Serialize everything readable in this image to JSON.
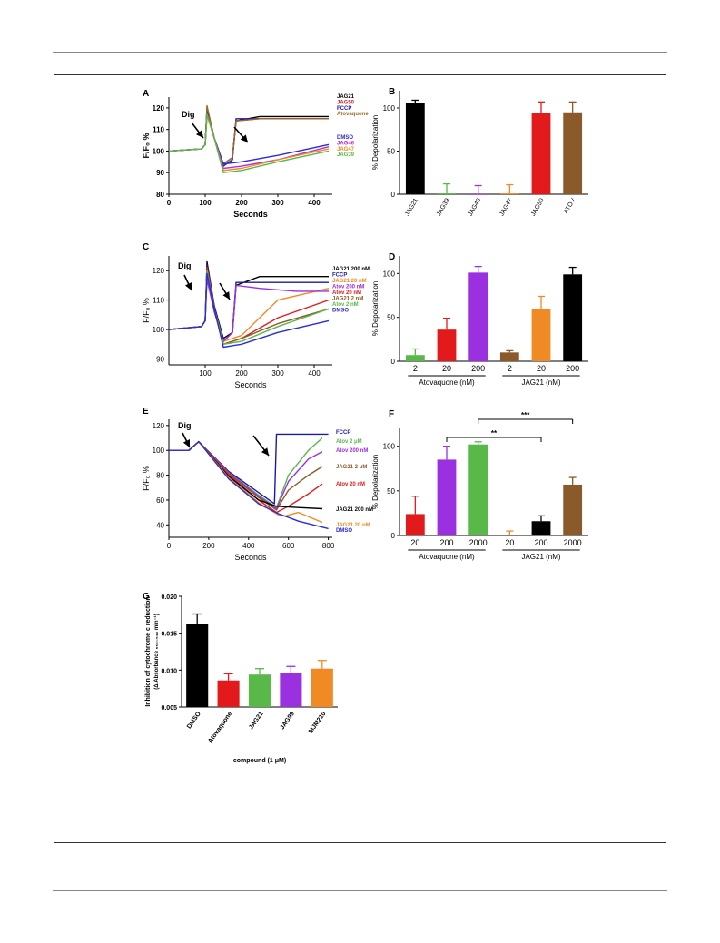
{
  "panels": {
    "A": {
      "letter": "A",
      "xlabel": "Seconds",
      "ylabel": "F/F₀ %",
      "xticks": [
        "0",
        "100",
        "200",
        "300",
        "400"
      ],
      "yticks": [
        "80",
        "90",
        "100",
        "110",
        "120"
      ],
      "marker": "Dig",
      "legend": [
        {
          "label": "JAG21",
          "color": "#000000"
        },
        {
          "label": "JAG50",
          "color": "#e31a1c"
        },
        {
          "label": "FCCP",
          "color": "#1a1aa6"
        },
        {
          "label": "Atovaquone",
          "color": "#9c6b30"
        },
        {
          "label": "DMSO",
          "color": "#2b2bd8"
        },
        {
          "label": "JAG46",
          "color": "#b42fd6"
        },
        {
          "label": "JAG47",
          "color": "#f08a24"
        },
        {
          "label": "JAG39",
          "color": "#58b848"
        }
      ]
    },
    "B": {
      "letter": "B",
      "ylabel": "% Depolarization",
      "yticks": [
        "0",
        "50",
        "100"
      ],
      "bars": [
        {
          "label": "JAG21",
          "value": 106,
          "err": 3,
          "color": "#000000"
        },
        {
          "label": "JAG39",
          "value": 1,
          "err": 11,
          "color": "#58b848"
        },
        {
          "label": "JAG46",
          "value": 0,
          "err": 10,
          "color": "#9b30e0"
        },
        {
          "label": "JAG47",
          "value": 1,
          "err": 10,
          "color": "#f08a24"
        },
        {
          "label": "JAG50",
          "value": 94,
          "err": 13,
          "color": "#e31a1c"
        },
        {
          "label": "ATOV",
          "value": 95,
          "err": 12,
          "color": "#8b5a2b"
        }
      ]
    },
    "C": {
      "letter": "C",
      "xlabel": "Seconds",
      "ylabel": "F/F₀ %",
      "xticks": [
        "100",
        "200",
        "300",
        "400"
      ],
      "yticks": [
        "90",
        "100",
        "110",
        "120"
      ],
      "marker": "Dig",
      "legend": [
        {
          "label": "JAG21 200 nM",
          "color": "#000000"
        },
        {
          "label": "FCCP",
          "color": "#1a1aa6"
        },
        {
          "label": "JAG21 20 nM",
          "color": "#f08a24"
        },
        {
          "label": "Atov 200 nM",
          "color": "#9b30e0"
        },
        {
          "label": "Atov 20 nM",
          "color": "#e31a1c"
        },
        {
          "label": "JAG21 2 nM",
          "color": "#8b5a2b"
        },
        {
          "label": "Atov 2 nM",
          "color": "#58b848"
        },
        {
          "label": "DMSO",
          "color": "#2b2bd8"
        }
      ]
    },
    "D": {
      "letter": "D",
      "ylabel": "% Depolarization",
      "yticks": [
        "0",
        "50",
        "100"
      ],
      "bars": [
        {
          "label": "2",
          "value": 7,
          "err": 7,
          "color": "#58b848"
        },
        {
          "label": "20",
          "value": 36,
          "err": 13,
          "color": "#e31a1c"
        },
        {
          "label": "200",
          "value": 101,
          "err": 7,
          "color": "#9b30e0"
        },
        {
          "label": "2",
          "value": 10,
          "err": 2,
          "color": "#8b5a2b"
        },
        {
          "label": "20",
          "value": 59,
          "err": 15,
          "color": "#f08a24"
        },
        {
          "label": "200",
          "value": 99,
          "err": 8,
          "color": "#000000"
        }
      ],
      "groups": [
        "Atovaquone (nM)",
        "JAG21 (nM)"
      ]
    },
    "E": {
      "letter": "E",
      "xlabel": "Seconds",
      "ylabel": "F/F₀ %",
      "xticks": [
        "0",
        "200",
        "400",
        "600",
        "800"
      ],
      "yticks": [
        "40",
        "60",
        "80",
        "100",
        "120"
      ],
      "marker": "Dig",
      "legend": [
        {
          "label": "FCCP",
          "color": "#1a1aa6"
        },
        {
          "label": "Atov 2 μM",
          "color": "#58b848"
        },
        {
          "label": "Atov 200 nM",
          "color": "#9b30e0"
        },
        {
          "label": "JAG21 2 μM",
          "color": "#8b5a2b"
        },
        {
          "label": "Atov 20 nM",
          "color": "#e31a1c"
        },
        {
          "label": "JAG21 200 nM",
          "color": "#000000"
        },
        {
          "label": "JAG21 20 nM",
          "color": "#f08a24"
        },
        {
          "label": "DMSO",
          "color": "#2b2bd8"
        }
      ]
    },
    "F": {
      "letter": "F",
      "ylabel": "% Depolarization",
      "yticks": [
        "0",
        "50",
        "100"
      ],
      "bars": [
        {
          "label": "20",
          "value": 24,
          "err": 20,
          "color": "#e31a1c"
        },
        {
          "label": "200",
          "value": 85,
          "err": 15,
          "color": "#9b30e0"
        },
        {
          "label": "2000",
          "value": 102,
          "err": 3,
          "color": "#58b848"
        },
        {
          "label": "20",
          "value": 1,
          "err": 4,
          "color": "#f08a24"
        },
        {
          "label": "200",
          "value": 16,
          "err": 6,
          "color": "#000000"
        },
        {
          "label": "2000",
          "value": 57,
          "err": 8,
          "color": "#8b5a2b"
        }
      ],
      "groups": [
        "Atovaquone (nM)",
        "JAG21 (nM)"
      ],
      "sig1": "**",
      "sig2": "***"
    },
    "G": {
      "letter": "G",
      "ylabel1": "Inhibition of cytochrome c reduction",
      "ylabel2": "(Δ Absorbance ₅₅₀₋₅₄₂ min⁻¹)",
      "xlabel": "compound (1 μM)",
      "yticks": [
        "0.005",
        "0.010",
        "0.015",
        "0.020"
      ],
      "bars": [
        {
          "label": "DMSO",
          "value": 0.0163,
          "err": 0.0013,
          "color": "#000000"
        },
        {
          "label": "Atovaquone",
          "value": 0.0086,
          "err": 0.0009,
          "color": "#e31a1c"
        },
        {
          "label": "JAG21",
          "value": 0.0094,
          "err": 0.0008,
          "color": "#58b848"
        },
        {
          "label": "JAG99",
          "value": 0.0096,
          "err": 0.0009,
          "color": "#9b30e0"
        },
        {
          "label": "MJM210",
          "value": 0.0102,
          "err": 0.0011,
          "color": "#f08a24"
        }
      ]
    }
  },
  "chart_data": [
    {
      "panel": "A",
      "type": "line",
      "xlabel": "Seconds",
      "ylabel": "F/F₀ %",
      "xlim": [
        0,
        450
      ],
      "ylim": [
        80,
        125
      ],
      "series": [
        {
          "name": "JAG21",
          "x": [
            0,
            90,
            100,
            105,
            125,
            150,
            175,
            185,
            250,
            350,
            440
          ],
          "y": [
            100,
            101,
            103,
            120,
            106,
            94,
            97,
            114,
            116,
            116,
            116
          ]
        },
        {
          "name": "JAG50",
          "x": [
            0,
            90,
            100,
            105,
            125,
            150,
            175,
            185,
            250,
            350,
            440
          ],
          "y": [
            100,
            101,
            103,
            120,
            106,
            94,
            97,
            114,
            115,
            115,
            115
          ]
        },
        {
          "name": "FCCP",
          "x": [
            0,
            90,
            100,
            105,
            125,
            150,
            175,
            185,
            250,
            350,
            440
          ],
          "y": [
            100,
            101,
            103,
            119,
            106,
            93,
            96,
            115,
            115,
            115,
            115
          ]
        },
        {
          "name": "Atovaquone",
          "x": [
            0,
            90,
            100,
            105,
            125,
            150,
            175,
            185,
            250,
            350,
            440
          ],
          "y": [
            100,
            101,
            103,
            121,
            106,
            94,
            97,
            114,
            115,
            115,
            115
          ]
        },
        {
          "name": "DMSO",
          "x": [
            0,
            90,
            100,
            105,
            125,
            150,
            200,
            300,
            440
          ],
          "y": [
            100,
            101,
            103,
            117,
            106,
            94,
            95,
            98,
            103
          ]
        },
        {
          "name": "JAG46",
          "x": [
            0,
            90,
            100,
            105,
            125,
            150,
            200,
            300,
            440
          ],
          "y": [
            100,
            101,
            103,
            117,
            106,
            92,
            93,
            96,
            102
          ]
        },
        {
          "name": "JAG47",
          "x": [
            0,
            90,
            100,
            105,
            125,
            150,
            200,
            300,
            440
          ],
          "y": [
            100,
            101,
            103,
            117,
            106,
            91,
            92,
            96,
            101
          ]
        },
        {
          "name": "JAG39",
          "x": [
            0,
            90,
            100,
            105,
            125,
            150,
            200,
            300,
            440
          ],
          "y": [
            100,
            101,
            103,
            117,
            106,
            90,
            91,
            95,
            100
          ]
        }
      ]
    },
    {
      "panel": "B",
      "type": "bar",
      "ylabel": "% Depolarization",
      "ylim": [
        0,
        120
      ],
      "categories": [
        "JAG21",
        "JAG39",
        "JAG46",
        "JAG47",
        "JAG50",
        "ATOV"
      ],
      "values": [
        106,
        1,
        0,
        1,
        94,
        95
      ],
      "errors": [
        3,
        11,
        10,
        10,
        13,
        12
      ]
    },
    {
      "panel": "C",
      "type": "line",
      "xlabel": "Seconds",
      "ylabel": "F/F₀ %",
      "xlim": [
        0,
        450
      ],
      "ylim": [
        88,
        125
      ],
      "series": [
        {
          "name": "JAG21 200 nM",
          "x": [
            0,
            90,
            100,
            105,
            125,
            150,
            175,
            185,
            250,
            350,
            440
          ],
          "y": [
            100,
            101,
            103,
            123,
            108,
            97,
            99,
            115,
            118,
            118,
            118
          ]
        },
        {
          "name": "FCCP",
          "x": [
            0,
            90,
            100,
            105,
            125,
            150,
            175,
            185,
            250,
            350,
            440
          ],
          "y": [
            100,
            101,
            103,
            122,
            108,
            96,
            99,
            116,
            116,
            116,
            116
          ]
        },
        {
          "name": "JAG21 20 nM",
          "x": [
            0,
            90,
            100,
            105,
            125,
            150,
            200,
            300,
            440
          ],
          "y": [
            100,
            101,
            103,
            121,
            107,
            96,
            98,
            110,
            114
          ]
        },
        {
          "name": "Atov 200 nM",
          "x": [
            0,
            90,
            100,
            105,
            125,
            150,
            175,
            185,
            250,
            350,
            440
          ],
          "y": [
            100,
            101,
            103,
            117,
            106,
            96,
            99,
            115,
            114,
            113,
            113
          ]
        },
        {
          "name": "Atov 20 nM",
          "x": [
            0,
            90,
            100,
            105,
            125,
            150,
            200,
            300,
            440
          ],
          "y": [
            100,
            101,
            103,
            121,
            107,
            95,
            97,
            104,
            110
          ]
        },
        {
          "name": "JAG21 2 nM",
          "x": [
            0,
            90,
            100,
            105,
            125,
            150,
            200,
            300,
            440
          ],
          "y": [
            100,
            101,
            103,
            120,
            107,
            95,
            97,
            102,
            107
          ]
        },
        {
          "name": "Atov 2 nM",
          "x": [
            0,
            90,
            100,
            105,
            125,
            150,
            200,
            300,
            440
          ],
          "y": [
            100,
            101,
            103,
            120,
            107,
            95,
            96,
            101,
            107
          ]
        },
        {
          "name": "DMSO",
          "x": [
            0,
            90,
            100,
            105,
            125,
            150,
            200,
            300,
            440
          ],
          "y": [
            100,
            101,
            103,
            119,
            107,
            94,
            95,
            99,
            103
          ]
        }
      ]
    },
    {
      "panel": "D",
      "type": "bar",
      "ylabel": "% Depolarization",
      "ylim": [
        0,
        120
      ],
      "categories": [
        "2",
        "20",
        "200",
        "2",
        "20",
        "200"
      ],
      "groups": [
        "Atovaquone (nM)",
        "JAG21 (nM)"
      ],
      "values": [
        7,
        36,
        101,
        10,
        59,
        99
      ],
      "errors": [
        7,
        13,
        7,
        2,
        15,
        8
      ]
    },
    {
      "panel": "E",
      "type": "line",
      "xlabel": "Seconds",
      "ylabel": "F/F₀ %",
      "xlim": [
        0,
        820
      ],
      "ylim": [
        30,
        125
      ],
      "series": [
        {
          "name": "FCCP",
          "x": [
            0,
            100,
            150,
            300,
            450,
            530,
            540,
            600,
            800
          ],
          "y": [
            100,
            100,
            107,
            83,
            66,
            57,
            113,
            113,
            113
          ]
        },
        {
          "name": "Atov 2 μM",
          "x": [
            0,
            100,
            150,
            300,
            450,
            540,
            600,
            700,
            770
          ],
          "y": [
            100,
            100,
            107,
            82,
            64,
            54,
            80,
            100,
            110
          ]
        },
        {
          "name": "Atov 200 nM",
          "x": [
            0,
            100,
            150,
            300,
            450,
            540,
            600,
            700,
            770
          ],
          "y": [
            100,
            100,
            107,
            82,
            63,
            53,
            75,
            93,
            99
          ]
        },
        {
          "name": "JAG21 2 μM",
          "x": [
            0,
            100,
            150,
            300,
            450,
            540,
            600,
            700,
            770
          ],
          "y": [
            100,
            100,
            107,
            81,
            62,
            52,
            68,
            80,
            87
          ]
        },
        {
          "name": "Atov 20 nM",
          "x": [
            0,
            100,
            150,
            300,
            450,
            540,
            600,
            700,
            770
          ],
          "y": [
            100,
            100,
            107,
            80,
            60,
            50,
            55,
            65,
            73
          ]
        },
        {
          "name": "JAG21 200 nM",
          "x": [
            0,
            100,
            150,
            300,
            450,
            540,
            650,
            770
          ],
          "y": [
            100,
            100,
            107,
            79,
            60,
            55,
            54,
            53
          ]
        },
        {
          "name": "JAG21 20 nM",
          "x": [
            0,
            100,
            150,
            300,
            450,
            550,
            580,
            650,
            770
          ],
          "y": [
            100,
            100,
            107,
            78,
            58,
            48,
            47,
            50,
            42
          ]
        },
        {
          "name": "DMSO",
          "x": [
            0,
            100,
            150,
            300,
            450,
            550,
            650,
            800
          ],
          "y": [
            100,
            100,
            107,
            77,
            57,
            49,
            43,
            37
          ]
        }
      ]
    },
    {
      "panel": "F",
      "type": "bar",
      "ylabel": "% Depolarization",
      "ylim": [
        0,
        120
      ],
      "categories": [
        "20",
        "200",
        "2000",
        "20",
        "200",
        "2000"
      ],
      "groups": [
        "Atovaquone (nM)",
        "JAG21 (nM)"
      ],
      "values": [
        24,
        85,
        102,
        1,
        16,
        57
      ],
      "errors": [
        20,
        15,
        3,
        4,
        6,
        8
      ]
    },
    {
      "panel": "G",
      "type": "bar",
      "xlabel": "compound (1 μM)",
      "ylim": [
        0.005,
        0.02
      ],
      "categories": [
        "DMSO",
        "Atovaquone",
        "JAG21",
        "JAG99",
        "MJM210"
      ],
      "values": [
        0.0163,
        0.0086,
        0.0094,
        0.0096,
        0.0102
      ],
      "errors": [
        0.0013,
        0.0009,
        0.0008,
        0.0009,
        0.0011
      ]
    }
  ]
}
